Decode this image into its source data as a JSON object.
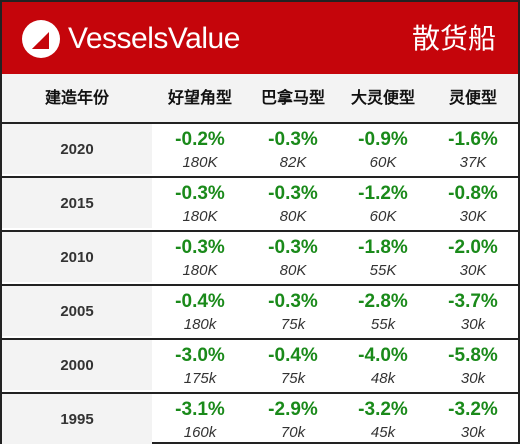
{
  "header": {
    "brand": "VesselsValue",
    "category": "散货船",
    "brand_color": "#c5050b"
  },
  "columns": {
    "year": "建造年份",
    "capesize": "好望角型",
    "panamax": "巴拿马型",
    "supramax": "大灵便型",
    "handysize": "灵便型"
  },
  "rows": [
    {
      "year": "2020",
      "cells": [
        {
          "pct": "-0.2%",
          "size": "180K"
        },
        {
          "pct": "-0.3%",
          "size": "82K"
        },
        {
          "pct": "-0.9%",
          "size": "60K"
        },
        {
          "pct": "-1.6%",
          "size": "37K"
        }
      ]
    },
    {
      "year": "2015",
      "cells": [
        {
          "pct": "-0.3%",
          "size": "180K"
        },
        {
          "pct": "-0.3%",
          "size": "80K"
        },
        {
          "pct": "-1.2%",
          "size": "60K"
        },
        {
          "pct": "-0.8%",
          "size": "30K"
        }
      ]
    },
    {
      "year": "2010",
      "cells": [
        {
          "pct": "-0.3%",
          "size": "180K"
        },
        {
          "pct": "-0.3%",
          "size": "80K"
        },
        {
          "pct": "-1.8%",
          "size": "55K"
        },
        {
          "pct": "-2.0%",
          "size": "30K"
        }
      ]
    },
    {
      "year": "2005",
      "cells": [
        {
          "pct": "-0.4%",
          "size": "180k"
        },
        {
          "pct": "-0.3%",
          "size": "75k"
        },
        {
          "pct": "-2.8%",
          "size": "55k"
        },
        {
          "pct": "-3.7%",
          "size": "30k"
        }
      ]
    },
    {
      "year": "2000",
      "cells": [
        {
          "pct": "-3.0%",
          "size": "175k"
        },
        {
          "pct": "-0.4%",
          "size": "75k"
        },
        {
          "pct": "-4.0%",
          "size": "48k"
        },
        {
          "pct": "-5.8%",
          "size": "30k"
        }
      ]
    },
    {
      "year": "1995",
      "cells": [
        {
          "pct": "-3.1%",
          "size": "160k"
        },
        {
          "pct": "-2.9%",
          "size": "70k"
        },
        {
          "pct": "-3.2%",
          "size": "45k"
        },
        {
          "pct": "-3.2%",
          "size": "30k"
        }
      ]
    }
  ],
  "colors": {
    "change_text": "#1a8a1a",
    "header_background": "#c5050b",
    "row_header_background": "#f3f3f3"
  },
  "icons": {
    "logo": "vesselsvalue-triangle-logo-icon"
  }
}
